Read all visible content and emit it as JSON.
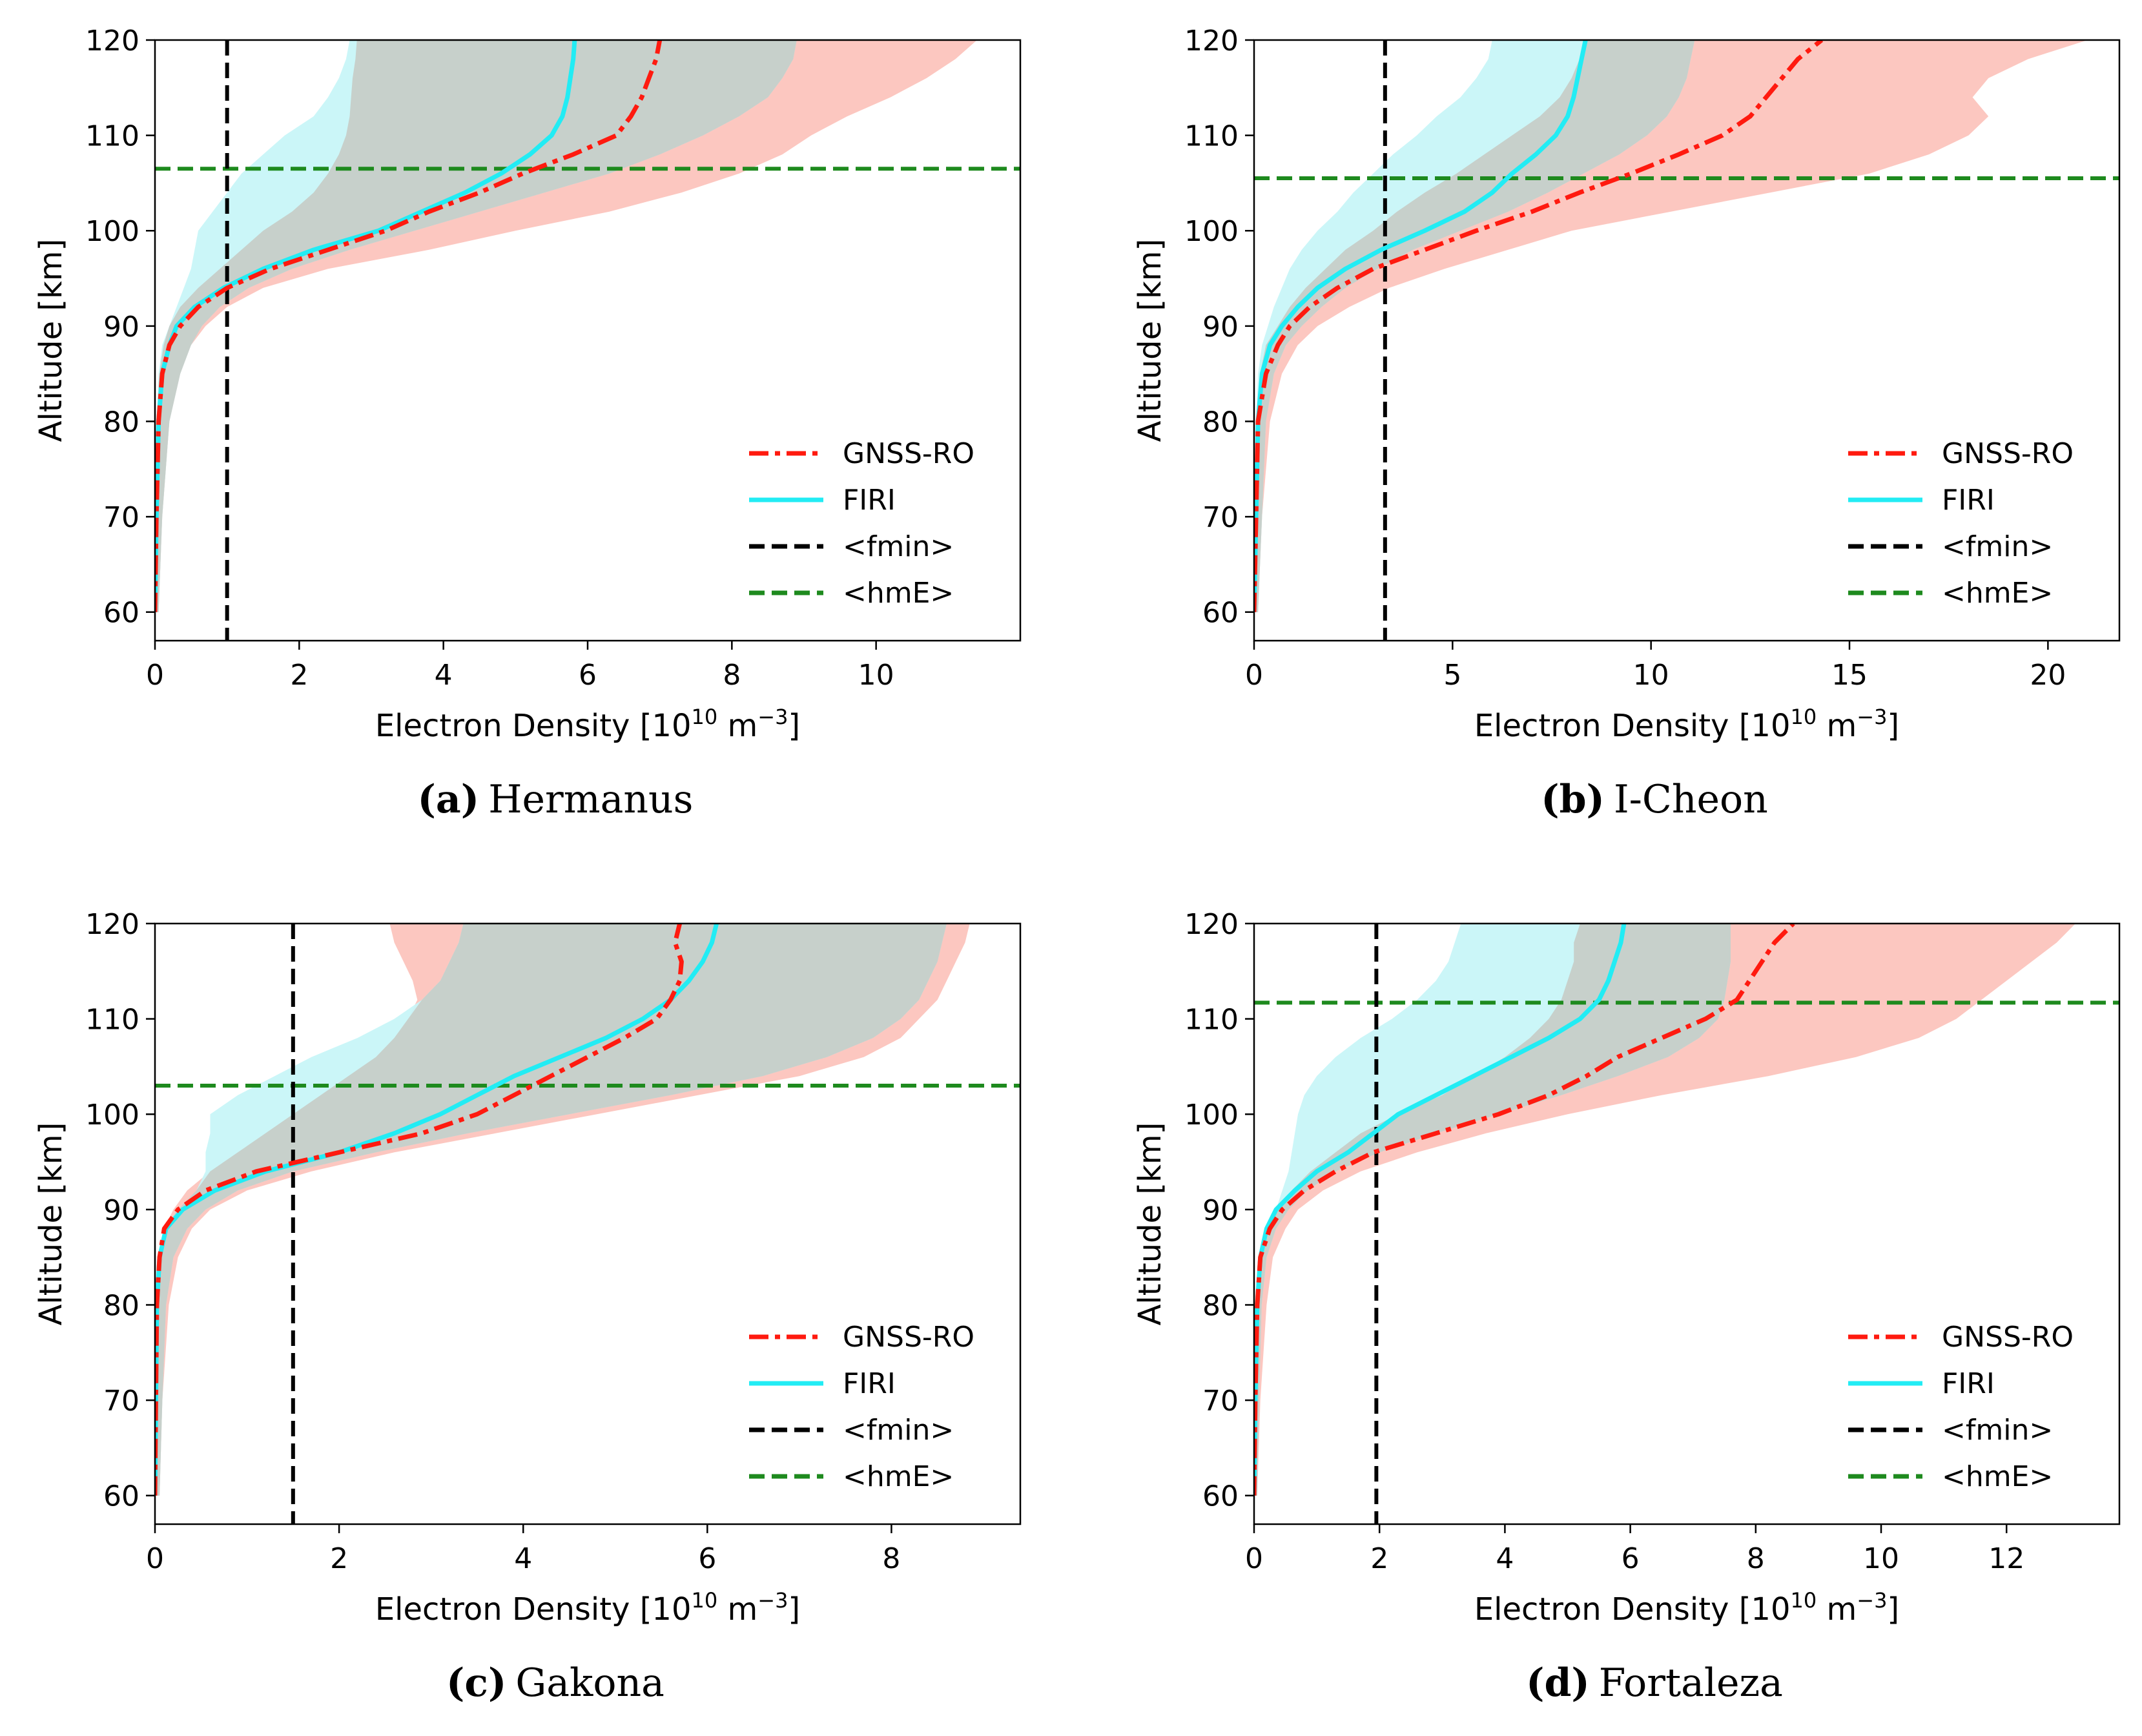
{
  "colors": {
    "gnss": "#ff1a0f",
    "firi": "#22ecf4",
    "fmin": "#000000",
    "hme": "#1e8a1e",
    "gnss_band": "#fbbdb5",
    "firi_band": "#c8f6f8",
    "overlap_band": "#c6cdc8"
  },
  "legend": {
    "gnss": "GNSS-RO",
    "firi": "FIRI",
    "fmin": "<fmin>",
    "hme": "<hmE>"
  },
  "chart_data": [
    {
      "type": "line",
      "caption_letter": "(a)",
      "caption_station": "Hermanus",
      "xlabel": "Electron Density [10",
      "xlabel_exp": "10",
      "xlabel_unit": " m",
      "xlabel_unit_exp": "−3",
      "xlabel_close": "]",
      "ylabel": "Altitude [km]",
      "xlim": [
        0,
        12.0
      ],
      "ylim": [
        57,
        120
      ],
      "xticks": [
        0,
        2,
        4,
        6,
        8,
        10
      ],
      "xtick_labels": [
        "0",
        "2",
        "4",
        "6",
        "8",
        "10"
      ],
      "yticks": [
        60,
        70,
        80,
        90,
        100,
        110,
        120
      ],
      "ytick_labels": [
        "60",
        "70",
        "80",
        "90",
        "100",
        "110",
        "120"
      ],
      "fmin": 1.0,
      "hmE": 106.5,
      "altitude": [
        60,
        70,
        80,
        85,
        88,
        90,
        92,
        94,
        96,
        98,
        100,
        102,
        104,
        106,
        108,
        110,
        112,
        114,
        116,
        118,
        120
      ],
      "series": [
        {
          "name": "GNSS-RO",
          "values": [
            0.0,
            0.02,
            0.05,
            0.1,
            0.2,
            0.35,
            0.6,
            1.0,
            1.6,
            2.4,
            3.2,
            3.8,
            4.5,
            5.1,
            5.8,
            6.4,
            6.6,
            6.75,
            6.85,
            6.95,
            7.0
          ]
        },
        {
          "name": "FIRI",
          "values": [
            0.0,
            0.02,
            0.05,
            0.1,
            0.2,
            0.3,
            0.55,
            0.95,
            1.5,
            2.2,
            3.1,
            3.7,
            4.3,
            4.8,
            5.2,
            5.5,
            5.65,
            5.72,
            5.76,
            5.8,
            5.82
          ]
        }
      ],
      "gnss_band": {
        "lower": [
          0.0,
          0.01,
          0.03,
          0.06,
          0.12,
          0.2,
          0.35,
          0.6,
          0.9,
          1.2,
          1.5,
          1.9,
          2.2,
          2.4,
          2.55,
          2.65,
          2.7,
          2.72,
          2.74,
          2.78,
          2.8
        ],
        "upper": [
          0.05,
          0.1,
          0.2,
          0.35,
          0.5,
          0.7,
          1.0,
          1.5,
          2.4,
          3.8,
          5.0,
          6.3,
          7.3,
          8.1,
          8.7,
          9.1,
          9.6,
          10.2,
          10.7,
          11.1,
          11.4
        ]
      },
      "firi_band": {
        "lower": [
          0.0,
          0.01,
          0.02,
          0.05,
          0.1,
          0.2,
          0.3,
          0.4,
          0.5,
          0.55,
          0.6,
          0.8,
          1.0,
          1.2,
          1.5,
          1.8,
          2.2,
          2.4,
          2.55,
          2.65,
          2.7
        ],
        "upper": [
          0.05,
          0.1,
          0.2,
          0.35,
          0.5,
          0.65,
          0.9,
          1.3,
          1.9,
          2.7,
          3.6,
          4.5,
          5.4,
          6.3,
          7.0,
          7.6,
          8.1,
          8.5,
          8.7,
          8.85,
          8.9
        ]
      }
    },
    {
      "type": "line",
      "caption_letter": "(b)",
      "caption_station": "I-Cheon",
      "xlabel": "Electron Density [10",
      "xlabel_exp": "10",
      "xlabel_unit": " m",
      "xlabel_unit_exp": "−3",
      "xlabel_close": "]",
      "ylabel": "Altitude [km]",
      "xlim": [
        0,
        21.8
      ],
      "ylim": [
        57,
        120
      ],
      "xticks": [
        0,
        5,
        10,
        15,
        20
      ],
      "xtick_labels": [
        "0",
        "5",
        "10",
        "15",
        "20"
      ],
      "yticks": [
        60,
        70,
        80,
        90,
        100,
        110,
        120
      ],
      "ytick_labels": [
        "60",
        "70",
        "80",
        "90",
        "100",
        "110",
        "120"
      ],
      "fmin": 3.3,
      "hmE": 105.5,
      "altitude": [
        60,
        70,
        80,
        85,
        88,
        90,
        92,
        94,
        96,
        98,
        100,
        102,
        104,
        106,
        108,
        110,
        112,
        114,
        116,
        118,
        120
      ],
      "series": [
        {
          "name": "GNSS-RO",
          "values": [
            0.0,
            0.05,
            0.1,
            0.3,
            0.6,
            0.9,
            1.4,
            2.1,
            3.0,
            4.3,
            5.6,
            7.0,
            8.2,
            9.5,
            10.7,
            11.8,
            12.5,
            12.9,
            13.3,
            13.7,
            14.3
          ]
        },
        {
          "name": "FIRI",
          "values": [
            0.0,
            0.05,
            0.1,
            0.2,
            0.4,
            0.7,
            1.1,
            1.6,
            2.3,
            3.2,
            4.3,
            5.3,
            6.0,
            6.5,
            7.1,
            7.6,
            7.9,
            8.05,
            8.15,
            8.25,
            8.35
          ]
        }
      ],
      "gnss_band": {
        "lower": [
          0.0,
          0.02,
          0.05,
          0.15,
          0.3,
          0.6,
          0.9,
          1.3,
          1.8,
          2.3,
          3.0,
          3.6,
          4.3,
          5.1,
          5.8,
          6.5,
          7.2,
          7.7,
          8.0,
          8.2,
          8.3
        ],
        "upper": [
          0.1,
          0.2,
          0.4,
          0.7,
          1.1,
          1.6,
          2.4,
          3.4,
          4.8,
          6.4,
          8.0,
          10.5,
          13.0,
          15.5,
          17.0,
          18.0,
          18.5,
          18.1,
          18.5,
          19.5,
          21.0
        ]
      },
      "firi_band": {
        "lower": [
          0.0,
          0.02,
          0.05,
          0.1,
          0.2,
          0.35,
          0.5,
          0.7,
          0.9,
          1.2,
          1.6,
          2.1,
          2.5,
          3.0,
          3.5,
          4.1,
          4.6,
          5.2,
          5.6,
          5.9,
          6.0
        ],
        "upper": [
          0.1,
          0.2,
          0.3,
          0.5,
          0.8,
          1.2,
          1.7,
          2.3,
          3.1,
          4.0,
          5.2,
          6.4,
          7.4,
          8.3,
          9.2,
          9.9,
          10.4,
          10.7,
          10.9,
          11.0,
          11.1
        ]
      }
    },
    {
      "type": "line",
      "caption_letter": "(c)",
      "caption_station": "Gakona",
      "xlabel": "Electron Density [10",
      "xlabel_exp": "10",
      "xlabel_unit": " m",
      "xlabel_unit_exp": "−3",
      "xlabel_close": "]",
      "ylabel": "Altitude [km]",
      "xlim": [
        0,
        9.4
      ],
      "ylim": [
        57,
        120
      ],
      "xticks": [
        0,
        2,
        4,
        6,
        8
      ],
      "xtick_labels": [
        "0",
        "2",
        "4",
        "6",
        "8"
      ],
      "yticks": [
        60,
        70,
        80,
        90,
        100,
        110,
        120
      ],
      "ytick_labels": [
        "60",
        "70",
        "80",
        "90",
        "100",
        "110",
        "120"
      ],
      "fmin": 1.5,
      "hmE": 103.0,
      "altitude": [
        60,
        70,
        80,
        85,
        88,
        90,
        92,
        94,
        96,
        98,
        100,
        102,
        104,
        106,
        108,
        110,
        112,
        114,
        116,
        118,
        120
      ],
      "series": [
        {
          "name": "GNSS-RO",
          "values": [
            0.0,
            0.01,
            0.02,
            0.05,
            0.1,
            0.25,
            0.55,
            1.1,
            2.0,
            2.9,
            3.5,
            3.9,
            4.3,
            4.7,
            5.1,
            5.45,
            5.6,
            5.7,
            5.72,
            5.65,
            5.7
          ]
        },
        {
          "name": "FIRI",
          "values": [
            0.0,
            0.01,
            0.02,
            0.05,
            0.12,
            0.3,
            0.65,
            1.2,
            2.0,
            2.6,
            3.1,
            3.5,
            3.9,
            4.4,
            4.9,
            5.3,
            5.6,
            5.8,
            5.95,
            6.05,
            6.1
          ]
        }
      ],
      "gnss_band": {
        "lower": [
          0.0,
          0.01,
          0.02,
          0.05,
          0.1,
          0.2,
          0.35,
          0.6,
          0.9,
          1.2,
          1.5,
          1.8,
          2.1,
          2.4,
          2.6,
          2.75,
          2.85,
          2.8,
          2.7,
          2.6,
          2.55
        ],
        "upper": [
          0.05,
          0.08,
          0.15,
          0.25,
          0.4,
          0.6,
          1.0,
          1.7,
          2.6,
          3.7,
          4.8,
          5.9,
          7.0,
          7.7,
          8.1,
          8.3,
          8.5,
          8.6,
          8.7,
          8.8,
          8.85
        ]
      },
      "firi_band": {
        "lower": [
          0.0,
          0.01,
          0.02,
          0.05,
          0.1,
          0.25,
          0.45,
          0.55,
          0.55,
          0.6,
          0.6,
          0.9,
          1.3,
          1.7,
          2.2,
          2.6,
          2.9,
          3.1,
          3.2,
          3.3,
          3.35
        ],
        "upper": [
          0.05,
          0.08,
          0.12,
          0.2,
          0.35,
          0.55,
          0.9,
          1.5,
          2.4,
          3.4,
          4.5,
          5.6,
          6.6,
          7.3,
          7.8,
          8.1,
          8.3,
          8.4,
          8.5,
          8.55,
          8.6
        ]
      }
    },
    {
      "type": "line",
      "caption_letter": "(d)",
      "caption_station": "Fortaleza",
      "xlabel": "Electron Density [10",
      "xlabel_exp": "10",
      "xlabel_unit": " m",
      "xlabel_unit_exp": "−3",
      "xlabel_close": "]",
      "ylabel": "Altitude [km]",
      "xlim": [
        0,
        13.8
      ],
      "ylim": [
        57,
        120
      ],
      "xticks": [
        0,
        2,
        4,
        6,
        8,
        10,
        12
      ],
      "xtick_labels": [
        "0",
        "2",
        "4",
        "6",
        "8",
        "10",
        "12"
      ],
      "yticks": [
        60,
        70,
        80,
        90,
        100,
        110,
        120
      ],
      "ytick_labels": [
        "60",
        "70",
        "80",
        "90",
        "100",
        "110",
        "120"
      ],
      "fmin": 1.95,
      "hmE": 111.7,
      "altitude": [
        60,
        70,
        80,
        85,
        88,
        90,
        92,
        94,
        96,
        98,
        100,
        102,
        104,
        106,
        108,
        110,
        112,
        114,
        116,
        118,
        120
      ],
      "series": [
        {
          "name": "GNSS-RO",
          "values": [
            0.0,
            0.02,
            0.05,
            0.1,
            0.25,
            0.45,
            0.8,
            1.3,
            1.9,
            2.9,
            3.9,
            4.7,
            5.3,
            5.8,
            6.5,
            7.2,
            7.7,
            7.9,
            8.1,
            8.3,
            8.6
          ]
        },
        {
          "name": "FIRI",
          "values": [
            0.0,
            0.02,
            0.05,
            0.1,
            0.2,
            0.35,
            0.65,
            1.0,
            1.5,
            1.9,
            2.3,
            2.9,
            3.5,
            4.1,
            4.7,
            5.2,
            5.5,
            5.65,
            5.75,
            5.85,
            5.9
          ]
        }
      ],
      "gnss_band": {
        "lower": [
          0.0,
          0.02,
          0.05,
          0.1,
          0.2,
          0.35,
          0.6,
          0.9,
          1.3,
          1.7,
          2.3,
          3.0,
          3.5,
          4.0,
          4.4,
          4.7,
          4.9,
          5.0,
          5.1,
          5.1,
          5.2
        ],
        "upper": [
          0.05,
          0.1,
          0.2,
          0.3,
          0.5,
          0.7,
          1.1,
          1.7,
          2.6,
          3.7,
          5.0,
          6.5,
          8.2,
          9.6,
          10.6,
          11.2,
          11.6,
          12.0,
          12.4,
          12.8,
          13.1
        ]
      },
      "firi_band": {
        "lower": [
          0.0,
          0.02,
          0.05,
          0.1,
          0.2,
          0.35,
          0.45,
          0.55,
          0.6,
          0.65,
          0.7,
          0.8,
          1.0,
          1.3,
          1.7,
          2.2,
          2.6,
          2.9,
          3.1,
          3.2,
          3.3
        ],
        "upper": [
          0.05,
          0.08,
          0.12,
          0.2,
          0.35,
          0.55,
          0.85,
          1.3,
          2.0,
          2.9,
          3.9,
          4.9,
          5.8,
          6.6,
          7.1,
          7.4,
          7.5,
          7.55,
          7.6,
          7.6,
          7.6
        ]
      }
    }
  ]
}
